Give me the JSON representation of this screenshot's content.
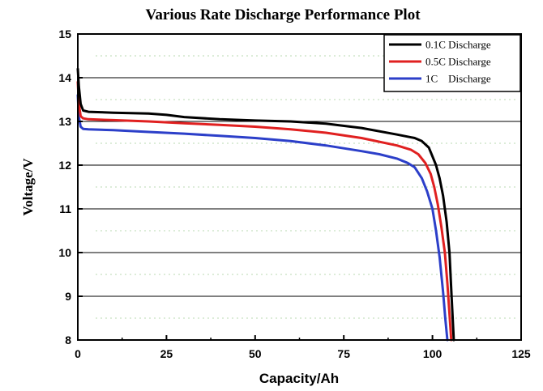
{
  "chart_data": {
    "type": "line",
    "title": "Various Rate Discharge Performance Plot",
    "xlabel": "Capacity/Ah",
    "ylabel": "Voltage/V",
    "xlim": [
      0,
      125
    ],
    "ylim": [
      8,
      15
    ],
    "xticks": [
      "0",
      "25",
      "50",
      "75",
      "100",
      "125"
    ],
    "yticks": [
      "8",
      "9",
      "10",
      "11",
      "12",
      "13",
      "14",
      "15"
    ],
    "grid": "horizontal solid major lines, dotted minor lines",
    "legend_position": "top-right",
    "series": [
      {
        "name": "0.1C Discharge",
        "color": "#000000",
        "x": [
          0,
          0.3,
          0.8,
          1.5,
          3,
          10,
          20,
          25,
          30,
          40,
          50,
          60,
          70,
          80,
          90,
          95,
          97,
          99,
          100,
          101,
          102,
          103,
          104,
          104.8,
          105.4,
          106
        ],
        "y": [
          14.2,
          13.8,
          13.4,
          13.25,
          13.22,
          13.2,
          13.18,
          13.15,
          13.1,
          13.05,
          13.02,
          13.0,
          12.95,
          12.85,
          12.7,
          12.62,
          12.55,
          12.4,
          12.2,
          12.0,
          11.7,
          11.3,
          10.7,
          10.0,
          9.0,
          8.0
        ]
      },
      {
        "name": "0.5C Discharge",
        "color": "#e02020",
        "x": [
          0,
          0.3,
          0.8,
          1.5,
          3,
          10,
          20,
          30,
          40,
          50,
          60,
          70,
          80,
          90,
          94,
          96,
          98,
          99.5,
          100.5,
          101.5,
          102.5,
          103.5,
          104.2,
          104.8,
          105.3
        ],
        "y": [
          13.9,
          13.4,
          13.12,
          13.07,
          13.05,
          13.03,
          13.0,
          12.96,
          12.92,
          12.88,
          12.82,
          12.74,
          12.62,
          12.45,
          12.35,
          12.25,
          12.05,
          11.8,
          11.5,
          11.1,
          10.6,
          10.0,
          9.3,
          8.6,
          8.0
        ]
      },
      {
        "name": "1C    Discharge",
        "color": "#2c3fc9",
        "x": [
          0,
          0.3,
          0.8,
          1.5,
          3,
          10,
          20,
          30,
          40,
          50,
          60,
          70,
          80,
          85,
          90,
          93,
          95,
          97,
          98.5,
          100,
          101,
          102,
          103,
          103.6,
          104.2
        ],
        "y": [
          13.6,
          13.1,
          12.88,
          12.83,
          12.82,
          12.8,
          12.76,
          12.72,
          12.67,
          12.62,
          12.55,
          12.45,
          12.32,
          12.25,
          12.15,
          12.05,
          11.95,
          11.7,
          11.4,
          11.0,
          10.5,
          9.9,
          9.1,
          8.5,
          8.0
        ]
      }
    ]
  }
}
